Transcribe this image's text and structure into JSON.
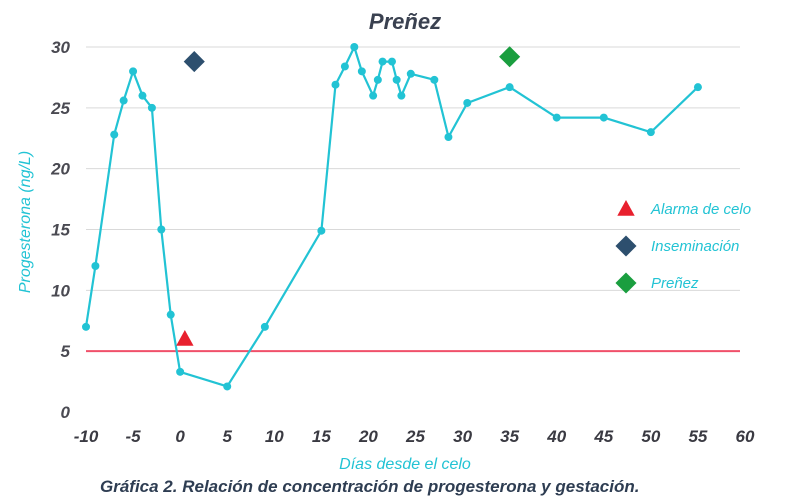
{
  "chart_data": {
    "type": "line",
    "title": "Preñez",
    "xlabel": "Días desde el celo",
    "ylabel": "Progesterona (ng/L)",
    "xlim": [
      -10,
      60
    ],
    "ylim": [
      0,
      30
    ],
    "x_ticks": [
      -10,
      -5,
      0,
      5,
      10,
      15,
      20,
      25,
      30,
      35,
      40,
      45,
      50,
      55,
      60
    ],
    "y_ticks": [
      0,
      5,
      10,
      15,
      20,
      25,
      30
    ],
    "grid": true,
    "legend_position": "right",
    "series": [
      {
        "color": "#22c3d4",
        "points": [
          [
            -10,
            7.0
          ],
          [
            -9,
            12.0
          ],
          [
            -7,
            22.8
          ],
          [
            -6,
            25.6
          ],
          [
            -5,
            28.0
          ],
          [
            -4,
            26.0
          ],
          [
            -3,
            25.0
          ],
          [
            -2,
            15.0
          ],
          [
            -1,
            8.0
          ],
          [
            0,
            3.3
          ],
          [
            5,
            2.1
          ],
          [
            9,
            7.0
          ],
          [
            15,
            14.9
          ],
          [
            16.5,
            26.9
          ],
          [
            17.5,
            28.4
          ],
          [
            18.5,
            30.0
          ],
          [
            19.3,
            28.0
          ],
          [
            20.5,
            26.0
          ],
          [
            21,
            27.3
          ],
          [
            21.5,
            28.8
          ],
          [
            22.5,
            28.8
          ],
          [
            23,
            27.3
          ],
          [
            23.5,
            26.0
          ],
          [
            24.5,
            27.8
          ],
          [
            27,
            27.3
          ],
          [
            28.5,
            22.6
          ],
          [
            30.5,
            25.4
          ],
          [
            35,
            26.7
          ],
          [
            40,
            24.2
          ],
          [
            45,
            24.2
          ],
          [
            50,
            23.0
          ],
          [
            55,
            26.7
          ]
        ]
      }
    ],
    "reference_line": {
      "y": 5,
      "color": "#f0506a"
    },
    "markers": [
      {
        "name": "Alarma de celo",
        "x": 0.5,
        "y": 6.0,
        "shape": "triangle",
        "color": "#e8202e"
      },
      {
        "name": "Inseminación",
        "x": 1.5,
        "y": 28.8,
        "shape": "diamond",
        "color": "#2d4f6e"
      },
      {
        "name": "Preñez",
        "x": 35,
        "y": 29.2,
        "shape": "diamond",
        "color": "#1a9e3f"
      }
    ],
    "legend": [
      {
        "label": "Alarma de celo",
        "shape": "triangle",
        "color": "#e8202e"
      },
      {
        "label": "Inseminación",
        "shape": "diamond",
        "color": "#2d4f6e"
      },
      {
        "label": "Preñez",
        "shape": "diamond",
        "color": "#1a9e3f"
      }
    ]
  },
  "caption": "Gráfica 2. Relación de concentración de progesterona y gestación."
}
